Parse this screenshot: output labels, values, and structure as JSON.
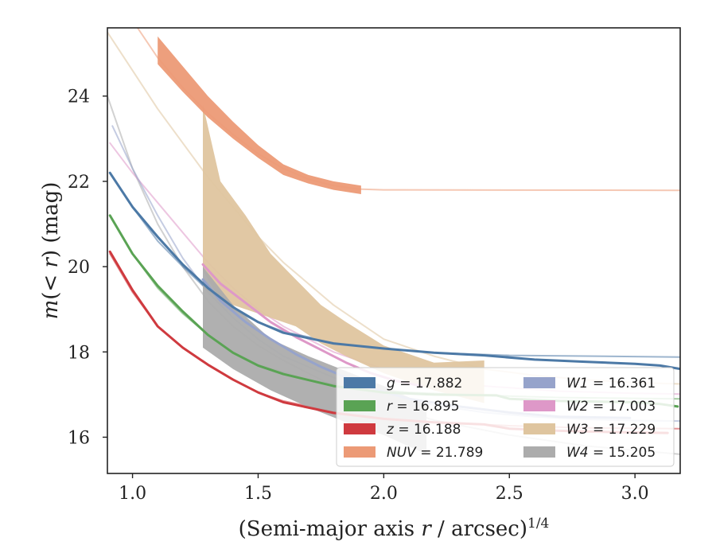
{
  "chart_data": {
    "type": "line",
    "title": "",
    "xlabel": "(Semi-major axis r / arcsec)^1/4",
    "ylabel": "m(< r) (mag)",
    "xlim": [
      0.9,
      3.18
    ],
    "ylim": [
      25.6,
      15.15
    ],
    "y_inverted": true,
    "grid": false,
    "legend_position": "lower-right",
    "x_ticks": [
      "1.0",
      "1.5",
      "2.0",
      "2.5",
      "3.0"
    ],
    "y_ticks": [
      "16",
      "18",
      "20",
      "22",
      "24"
    ],
    "legend": [
      {
        "text": "g = 17.882",
        "color": "#4c79a6"
      },
      {
        "text": "r = 16.895",
        "color": "#5aa354"
      },
      {
        "text": "z = 16.188",
        "color": "#cf3a3f"
      },
      {
        "text": "NUV = 21.789",
        "color": "#ec9a76"
      },
      {
        "text": "W1 = 16.361",
        "color": "#96a3cb"
      },
      {
        "text": "W2 = 17.003",
        "color": "#de98c8"
      },
      {
        "text": "W3 = 17.229",
        "color": "#dfc59f"
      },
      {
        "text": "W4 = 15.205",
        "color": "#acacac"
      }
    ],
    "series": [
      {
        "name": "W3",
        "color": "#dfc59f",
        "model": [
          [
            0.9,
            25.5
          ],
          [
            1.0,
            24.6
          ],
          [
            1.1,
            23.7
          ],
          [
            1.2,
            22.9
          ],
          [
            1.3,
            22.1
          ],
          [
            1.4,
            21.4
          ],
          [
            1.5,
            20.7
          ],
          [
            1.6,
            20.1
          ],
          [
            1.7,
            19.6
          ],
          [
            1.8,
            19.1
          ],
          [
            1.9,
            18.7
          ],
          [
            2.0,
            18.3
          ],
          [
            2.2,
            17.9
          ],
          [
            2.4,
            17.6
          ],
          [
            2.6,
            17.45
          ],
          [
            2.8,
            17.35
          ],
          [
            3.0,
            17.28
          ],
          [
            3.18,
            17.25
          ]
        ],
        "band_upper": [
          [
            1.28,
            19.9
          ],
          [
            1.35,
            19.2
          ],
          [
            1.5,
            18.9
          ],
          [
            1.65,
            18.6
          ],
          [
            1.75,
            18.2
          ],
          [
            1.85,
            17.9
          ],
          [
            2.0,
            17.5
          ],
          [
            2.2,
            17.1
          ],
          [
            2.4,
            16.8
          ]
        ],
        "band_lower": [
          [
            1.28,
            23.8
          ],
          [
            1.35,
            22.0
          ],
          [
            1.45,
            21.2
          ],
          [
            1.55,
            20.3
          ],
          [
            1.65,
            19.7
          ],
          [
            1.75,
            19.1
          ],
          [
            1.85,
            18.7
          ],
          [
            2.0,
            18.15
          ],
          [
            2.2,
            17.75
          ],
          [
            2.4,
            17.8
          ]
        ]
      },
      {
        "name": "W4",
        "color": "#acacac",
        "model": [
          [
            0.9,
            24.0
          ],
          [
            1.0,
            22.3
          ],
          [
            1.1,
            21.0
          ],
          [
            1.2,
            20.0
          ],
          [
            1.3,
            19.2
          ],
          [
            1.4,
            18.6
          ],
          [
            1.5,
            18.15
          ],
          [
            1.6,
            17.8
          ],
          [
            1.8,
            17.2
          ],
          [
            2.0,
            16.75
          ],
          [
            2.2,
            16.4
          ],
          [
            2.5,
            16.05
          ],
          [
            2.8,
            15.8
          ],
          [
            3.18,
            15.6
          ]
        ],
        "band_upper": [
          [
            1.28,
            18.1
          ],
          [
            1.4,
            17.6
          ],
          [
            1.55,
            17.1
          ],
          [
            1.7,
            16.7
          ],
          [
            1.85,
            16.35
          ],
          [
            2.0,
            16.05
          ],
          [
            2.17,
            15.6
          ]
        ],
        "band_lower": [
          [
            1.28,
            20.0
          ],
          [
            1.4,
            19.1
          ],
          [
            1.55,
            18.3
          ],
          [
            1.7,
            17.9
          ],
          [
            1.85,
            17.55
          ],
          [
            2.0,
            17.2
          ],
          [
            2.17,
            16.75
          ]
        ]
      },
      {
        "name": "NUV",
        "color": "#ec9a76",
        "model": [
          [
            1.02,
            25.6
          ],
          [
            1.1,
            24.9
          ],
          [
            1.2,
            24.2
          ],
          [
            1.3,
            23.6
          ],
          [
            1.4,
            23.1
          ],
          [
            1.5,
            22.65
          ],
          [
            1.6,
            22.3
          ],
          [
            1.7,
            22.05
          ],
          [
            1.8,
            21.9
          ],
          [
            1.9,
            21.82
          ],
          [
            2.0,
            21.8
          ],
          [
            3.18,
            21.79
          ]
        ],
        "band_upper": [
          [
            1.1,
            24.75
          ],
          [
            1.2,
            24.1
          ],
          [
            1.3,
            23.5
          ],
          [
            1.4,
            23.0
          ],
          [
            1.5,
            22.55
          ],
          [
            1.6,
            22.15
          ],
          [
            1.7,
            21.95
          ],
          [
            1.8,
            21.8
          ],
          [
            1.91,
            21.7
          ]
        ],
        "band_lower": [
          [
            1.1,
            25.4
          ],
          [
            1.2,
            24.7
          ],
          [
            1.3,
            24.0
          ],
          [
            1.4,
            23.4
          ],
          [
            1.5,
            22.85
          ],
          [
            1.6,
            22.4
          ],
          [
            1.7,
            22.15
          ],
          [
            1.8,
            22.0
          ],
          [
            1.91,
            21.9
          ]
        ]
      },
      {
        "name": "W2",
        "color": "#de98c8",
        "model": [
          [
            0.91,
            22.9
          ],
          [
            1.0,
            22.2
          ],
          [
            1.1,
            21.5
          ],
          [
            1.2,
            20.8
          ],
          [
            1.3,
            20.1
          ],
          [
            1.4,
            19.5
          ],
          [
            1.5,
            19.0
          ],
          [
            1.6,
            18.6
          ],
          [
            1.7,
            18.3
          ],
          [
            1.8,
            18.0
          ],
          [
            1.9,
            17.8
          ],
          [
            2.0,
            17.6
          ],
          [
            2.2,
            17.35
          ],
          [
            2.4,
            17.2
          ],
          [
            2.7,
            17.08
          ],
          [
            3.0,
            17.03
          ],
          [
            3.18,
            17.01
          ]
        ],
        "line": [
          [
            1.28,
            20.05
          ],
          [
            1.35,
            19.6
          ],
          [
            1.45,
            19.15
          ],
          [
            1.55,
            18.7
          ],
          [
            1.65,
            18.35
          ],
          [
            1.75,
            18.05
          ],
          [
            1.85,
            17.75
          ],
          [
            1.95,
            17.5
          ],
          [
            2.05,
            17.32
          ],
          [
            2.15,
            17.2
          ]
        ]
      },
      {
        "name": "W1",
        "color": "#96a3cb",
        "model": [
          [
            0.92,
            23.3
          ],
          [
            1.0,
            22.3
          ],
          [
            1.1,
            21.2
          ],
          [
            1.2,
            20.2
          ],
          [
            1.3,
            19.4
          ],
          [
            1.4,
            18.8
          ],
          [
            1.5,
            18.3
          ],
          [
            1.6,
            17.9
          ],
          [
            1.8,
            17.4
          ],
          [
            2.0,
            17.0
          ],
          [
            2.2,
            16.75
          ],
          [
            2.4,
            16.58
          ],
          [
            2.6,
            16.48
          ],
          [
            2.8,
            16.42
          ],
          [
            3.0,
            16.39
          ],
          [
            3.18,
            16.38
          ]
        ],
        "line": [
          [
            1.28,
            19.7
          ],
          [
            1.35,
            19.2
          ],
          [
            1.45,
            18.7
          ],
          [
            1.55,
            18.3
          ],
          [
            1.65,
            17.95
          ],
          [
            1.75,
            17.65
          ],
          [
            1.85,
            17.4
          ],
          [
            1.95,
            17.15
          ],
          [
            2.1,
            16.9
          ],
          [
            2.3,
            16.72
          ],
          [
            2.5,
            16.58
          ],
          [
            2.7,
            16.48
          ],
          [
            2.98,
            16.45
          ]
        ]
      },
      {
        "name": "g",
        "color": "#4c79a6",
        "model": [
          [
            0.91,
            22.2
          ],
          [
            1.0,
            21.4
          ],
          [
            1.1,
            20.6
          ],
          [
            1.2,
            20.0
          ],
          [
            1.3,
            19.45
          ],
          [
            1.4,
            19.0
          ],
          [
            1.5,
            18.7
          ],
          [
            1.6,
            18.48
          ],
          [
            1.8,
            18.22
          ],
          [
            2.0,
            18.08
          ],
          [
            2.2,
            17.98
          ],
          [
            2.5,
            17.92
          ],
          [
            3.18,
            17.88
          ]
        ],
        "line": [
          [
            0.91,
            22.2
          ],
          [
            1.0,
            21.4
          ],
          [
            1.1,
            20.7
          ],
          [
            1.2,
            20.05
          ],
          [
            1.3,
            19.5
          ],
          [
            1.4,
            19.05
          ],
          [
            1.5,
            18.7
          ],
          [
            1.6,
            18.45
          ],
          [
            1.8,
            18.2
          ],
          [
            2.0,
            18.08
          ],
          [
            2.2,
            17.98
          ],
          [
            2.4,
            17.92
          ],
          [
            2.6,
            17.82
          ],
          [
            2.8,
            17.77
          ],
          [
            3.0,
            17.72
          ],
          [
            3.1,
            17.68
          ],
          [
            3.18,
            17.6
          ]
        ]
      },
      {
        "name": "r",
        "color": "#5aa354",
        "model": [
          [
            0.91,
            21.2
          ],
          [
            1.0,
            20.3
          ],
          [
            1.1,
            19.5
          ],
          [
            1.2,
            18.9
          ],
          [
            1.3,
            18.4
          ],
          [
            1.4,
            18.0
          ],
          [
            1.5,
            17.7
          ],
          [
            1.7,
            17.35
          ],
          [
            1.9,
            17.15
          ],
          [
            2.1,
            17.05
          ],
          [
            2.4,
            16.98
          ],
          [
            2.7,
            16.93
          ],
          [
            3.18,
            16.9
          ]
        ],
        "line": [
          [
            0.91,
            21.2
          ],
          [
            1.0,
            20.3
          ],
          [
            1.1,
            19.55
          ],
          [
            1.2,
            18.95
          ],
          [
            1.3,
            18.4
          ],
          [
            1.4,
            17.98
          ],
          [
            1.5,
            17.68
          ],
          [
            1.6,
            17.48
          ],
          [
            1.8,
            17.2
          ],
          [
            2.0,
            17.05
          ],
          [
            2.2,
            17.0
          ],
          [
            2.45,
            16.98
          ],
          [
            2.5,
            16.9
          ],
          [
            2.7,
            16.85
          ],
          [
            2.9,
            16.83
          ],
          [
            3.0,
            16.82
          ],
          [
            3.1,
            16.78
          ],
          [
            3.17,
            16.72
          ]
        ]
      },
      {
        "name": "z",
        "color": "#cf3a3f",
        "model": [
          [
            0.91,
            20.3
          ],
          [
            1.0,
            19.4
          ],
          [
            1.1,
            18.6
          ],
          [
            1.2,
            18.1
          ],
          [
            1.3,
            17.7
          ],
          [
            1.4,
            17.35
          ],
          [
            1.5,
            17.05
          ],
          [
            1.6,
            16.85
          ],
          [
            1.8,
            16.6
          ],
          [
            2.0,
            16.45
          ],
          [
            2.2,
            16.35
          ],
          [
            2.5,
            16.27
          ],
          [
            2.8,
            16.22
          ],
          [
            3.18,
            16.2
          ]
        ],
        "line": [
          [
            0.91,
            20.35
          ],
          [
            1.0,
            19.45
          ],
          [
            1.1,
            18.6
          ],
          [
            1.2,
            18.1
          ],
          [
            1.3,
            17.7
          ],
          [
            1.4,
            17.35
          ],
          [
            1.5,
            17.05
          ],
          [
            1.6,
            16.82
          ],
          [
            1.8,
            16.57
          ],
          [
            2.0,
            16.43
          ],
          [
            2.2,
            16.35
          ],
          [
            2.4,
            16.3
          ],
          [
            2.5,
            16.2
          ],
          [
            2.7,
            16.15
          ],
          [
            2.9,
            16.12
          ],
          [
            3.13,
            16.1
          ]
        ]
      }
    ]
  }
}
